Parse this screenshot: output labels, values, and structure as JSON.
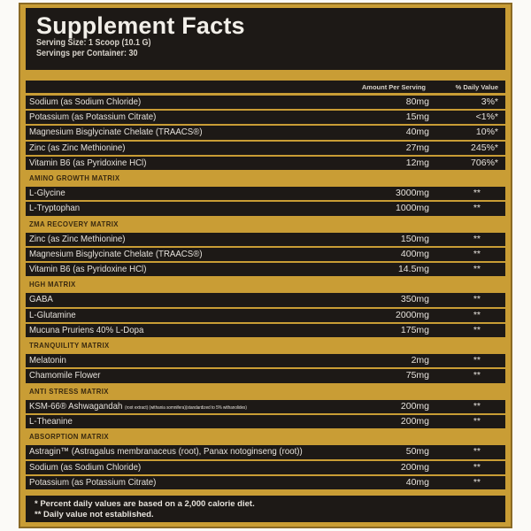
{
  "title": "Supplement Facts",
  "serving_size": "Serving Size: 1 Scoop (10.1 G)",
  "servings_per_container": "Servings per Container: 30",
  "columns": {
    "amount": "Amount Per Serving",
    "dv": "% Daily Value"
  },
  "colors": {
    "gold": "#c99d35",
    "dark": "#1d1916"
  },
  "rows": [
    {
      "name": "Sodium (as Sodium Chloride)",
      "amount": "80mg",
      "dv": "3%*"
    },
    {
      "name": "Potassium (as Potassium Citrate)",
      "amount": "15mg",
      "dv": "<1%*"
    },
    {
      "name": "Magnesium Bisglycinate Chelate (TRAACS®)",
      "amount": "40mg",
      "dv": "10%*"
    },
    {
      "name": "Zinc (as Zinc Methionine)",
      "amount": "27mg",
      "dv": "245%*"
    },
    {
      "name": "Vitamin B6 (as Pyridoxine HCl)",
      "amount": "12mg",
      "dv": "706%*"
    },
    {
      "section": "AMINO GROWTH MATRIX"
    },
    {
      "name": "L-Glycine",
      "amount": "3000mg",
      "dv": "**"
    },
    {
      "name": "L-Tryptophan",
      "amount": "1000mg",
      "dv": "**"
    },
    {
      "section": "ZMA RECOVERY MATRIX"
    },
    {
      "name": "Zinc (as Zinc Methionine)",
      "amount": "150mg",
      "dv": "**"
    },
    {
      "name": "Magnesium Bisglycinate Chelate (TRAACS®)",
      "amount": "400mg",
      "dv": "**"
    },
    {
      "name": "Vitamin B6 (as Pyridoxine HCl)",
      "amount": "14.5mg",
      "dv": "**"
    },
    {
      "section": "HGH MATRIX"
    },
    {
      "name": "GABA",
      "amount": "350mg",
      "dv": "**"
    },
    {
      "name": "L-Glutamine",
      "amount": "2000mg",
      "dv": "**"
    },
    {
      "name": "Mucuna Pruriens 40% L-Dopa",
      "amount": "175mg",
      "dv": "**"
    },
    {
      "section": "TRANQUILITY MATRIX"
    },
    {
      "name": "Melatonin",
      "amount": "2mg",
      "dv": "**"
    },
    {
      "name": "Chamomile Flower",
      "amount": "75mg",
      "dv": "**"
    },
    {
      "section": "ANTI STRESS MATRIX"
    },
    {
      "name": "KSM-66® Ashwagandah",
      "note": "(root extract) (withania somnifera)(standardized to 5% withanolides)",
      "amount": "200mg",
      "dv": "**"
    },
    {
      "name": "L-Theanine",
      "amount": "200mg",
      "dv": "**"
    },
    {
      "section": "ABSORPTION MATRIX"
    },
    {
      "name": "Astragin™ (Astragalus membranaceus (root), Panax notoginseng (root))",
      "amount": "50mg",
      "dv": "**"
    },
    {
      "name": "Sodium (as Sodium Chloride)",
      "amount": "200mg",
      "dv": "**"
    },
    {
      "name": "Potassium (as Potassium Citrate)",
      "amount": "40mg",
      "dv": "**"
    }
  ],
  "footer": [
    "* Percent daily values are based on a 2,000 calorie diet.",
    "** Daily value not established."
  ]
}
